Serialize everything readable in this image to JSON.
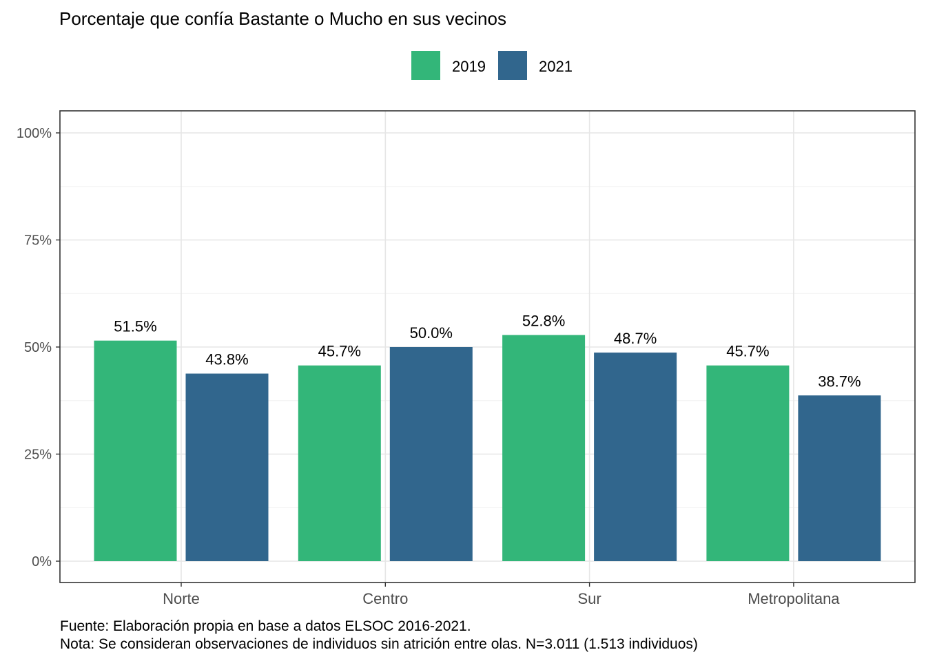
{
  "chart_data": {
    "type": "bar",
    "title": "Porcentaje que confía Bastante o Mucho en sus vecinos",
    "categories": [
      "Norte",
      "Centro",
      "Sur",
      "Metropolitana"
    ],
    "series": [
      {
        "name": "2019",
        "color": "#33b679",
        "values": [
          51.5,
          45.7,
          52.8,
          45.7
        ],
        "labels": [
          "51.5%",
          "45.7%",
          "52.8%",
          "45.7%"
        ]
      },
      {
        "name": "2021",
        "color": "#31668d",
        "values": [
          43.8,
          50.0,
          48.7,
          38.7
        ],
        "labels": [
          "43.8%",
          "50.0%",
          "48.7%",
          "38.7%"
        ]
      }
    ],
    "ylim": [
      0,
      100
    ],
    "yticks": [
      0,
      25,
      50,
      75,
      100
    ],
    "ytick_labels": [
      "0%",
      "25%",
      "50%",
      "75%",
      "100%"
    ],
    "grid": true,
    "legend_position": "top",
    "caption_lines": [
      "Fuente: Elaboración propia en base a datos ELSOC 2016-2021.",
      "Nota: Se consideran observaciones de individuos sin atrición entre olas. N=3.011 (1.513 individuos)"
    ]
  }
}
